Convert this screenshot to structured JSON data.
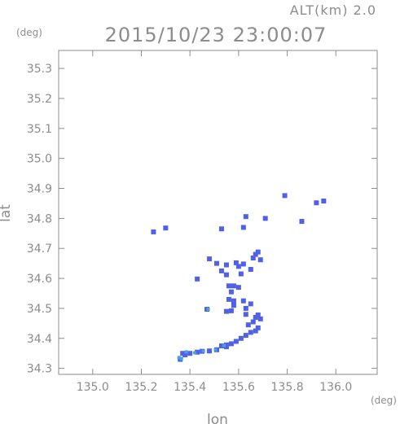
{
  "header": {
    "altitude": "ALT(km)  2.0",
    "timestamp": "2015/10/23 23:00:07"
  },
  "colors": {
    "axis": "#8c8c8c",
    "echo_strong": "#5060e8",
    "echo_weak": "#46a0e6"
  },
  "chart_data": {
    "type": "scatter",
    "title": "2015/10/23 23:00:07",
    "xlabel": "lon",
    "ylabel": "lat",
    "x_unit": "(deg)",
    "y_unit": "(deg)",
    "xlim": [
      134.86,
      136.17
    ],
    "ylim": [
      34.28,
      35.36
    ],
    "x_ticks": [
      "135.0",
      "135.2",
      "135.4",
      "135.6",
      "135.8",
      "136.0"
    ],
    "y_ticks": [
      "34.3",
      "34.4",
      "34.5",
      "34.6",
      "34.7",
      "34.8",
      "34.9",
      "35.0",
      "35.1",
      "35.2",
      "35.3"
    ],
    "grid": false,
    "series": [
      {
        "points": [
          [
            135.79,
            34.876
          ],
          [
            135.92,
            34.852
          ],
          [
            135.95,
            34.858
          ],
          [
            135.86,
            34.79
          ],
          [
            135.25,
            34.755
          ],
          [
            135.3,
            34.768
          ],
          [
            135.63,
            34.806
          ],
          [
            135.71,
            34.8
          ],
          [
            135.62,
            34.77
          ],
          [
            135.53,
            34.765
          ],
          [
            135.67,
            34.68
          ],
          [
            135.68,
            34.688
          ],
          [
            135.66,
            34.668
          ],
          [
            135.69,
            34.662
          ],
          [
            135.55,
            34.645
          ],
          [
            135.59,
            34.652
          ],
          [
            135.6,
            34.64
          ],
          [
            135.62,
            34.648
          ],
          [
            135.51,
            34.65
          ],
          [
            135.48,
            34.665
          ],
          [
            135.53,
            34.625
          ],
          [
            135.55,
            34.612
          ],
          [
            135.61,
            34.615
          ],
          [
            135.65,
            34.63
          ],
          [
            135.43,
            34.598
          ],
          [
            135.56,
            34.575
          ],
          [
            135.58,
            34.575
          ],
          [
            135.57,
            34.555
          ],
          [
            135.6,
            34.57
          ],
          [
            135.56,
            34.53
          ],
          [
            135.58,
            34.525
          ],
          [
            135.58,
            34.51
          ],
          [
            135.55,
            34.49
          ],
          [
            135.57,
            34.492
          ],
          [
            135.62,
            34.525
          ],
          [
            135.63,
            34.5
          ],
          [
            135.65,
            34.515
          ],
          [
            135.63,
            34.48
          ],
          [
            135.67,
            34.47
          ],
          [
            135.69,
            34.465
          ],
          [
            135.68,
            34.478
          ],
          [
            135.66,
            34.455
          ],
          [
            135.64,
            34.445
          ],
          [
            135.68,
            34.435
          ],
          [
            135.67,
            34.425
          ],
          [
            135.65,
            34.42
          ],
          [
            135.63,
            34.41
          ],
          [
            135.61,
            34.4
          ],
          [
            135.59,
            34.39
          ],
          [
            135.57,
            34.382
          ],
          [
            135.55,
            34.378
          ],
          [
            135.53,
            34.375
          ],
          [
            135.51,
            34.362
          ],
          [
            135.48,
            34.358
          ],
          [
            135.45,
            34.357
          ],
          [
            135.43,
            34.354
          ],
          [
            135.4,
            34.35
          ],
          [
            135.38,
            34.345
          ],
          [
            135.36,
            34.33
          ],
          [
            135.47,
            34.497
          ],
          [
            135.37,
            34.35
          ],
          [
            135.55,
            34.372
          ]
        ],
        "weak_points": [
          [
            135.475,
            34.497
          ],
          [
            135.505,
            34.362
          ],
          [
            135.385,
            34.355
          ],
          [
            135.355,
            34.336
          ],
          [
            135.54,
            34.376
          ],
          [
            135.42,
            34.352
          ],
          [
            135.455,
            34.358
          ],
          [
            135.365,
            34.332
          ]
        ]
      }
    ]
  }
}
